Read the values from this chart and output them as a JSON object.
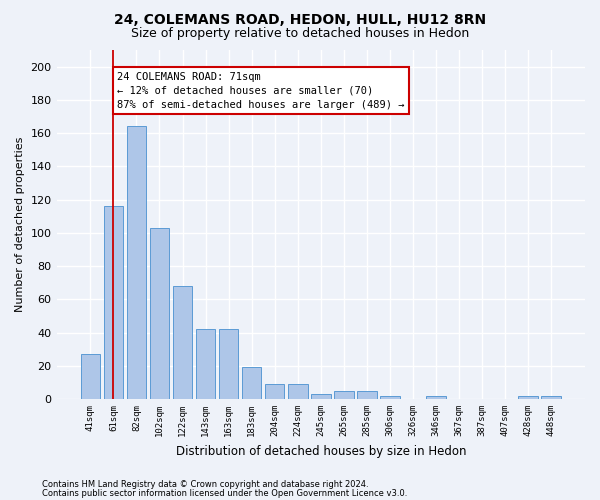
{
  "title1": "24, COLEMANS ROAD, HEDON, HULL, HU12 8RN",
  "title2": "Size of property relative to detached houses in Hedon",
  "xlabel": "Distribution of detached houses by size in Hedon",
  "ylabel": "Number of detached properties",
  "categories": [
    "41sqm",
    "61sqm",
    "82sqm",
    "102sqm",
    "122sqm",
    "143sqm",
    "163sqm",
    "183sqm",
    "204sqm",
    "224sqm",
    "245sqm",
    "265sqm",
    "285sqm",
    "306sqm",
    "326sqm",
    "346sqm",
    "367sqm",
    "387sqm",
    "407sqm",
    "428sqm",
    "448sqm"
  ],
  "values": [
    27,
    116,
    164,
    103,
    68,
    42,
    42,
    19,
    9,
    9,
    3,
    5,
    5,
    2,
    0,
    2,
    0,
    0,
    0,
    2,
    2
  ],
  "bar_color": "#aec6e8",
  "bar_edge_color": "#5b9bd5",
  "vline_x": 1.0,
  "vline_color": "#cc0000",
  "annotation_text": "24 COLEMANS ROAD: 71sqm\n← 12% of detached houses are smaller (70)\n87% of semi-detached houses are larger (489) →",
  "annotation_box_color": "#ffffff",
  "annotation_box_edge": "#cc0000",
  "ylim": [
    0,
    210
  ],
  "yticks": [
    0,
    20,
    40,
    60,
    80,
    100,
    120,
    140,
    160,
    180,
    200
  ],
  "footer1": "Contains HM Land Registry data © Crown copyright and database right 2024.",
  "footer2": "Contains public sector information licensed under the Open Government Licence v3.0.",
  "bg_color": "#eef2f9",
  "plot_bg_color": "#eef2f9",
  "grid_color": "#ffffff",
  "title1_fontsize": 10,
  "title2_fontsize": 9
}
